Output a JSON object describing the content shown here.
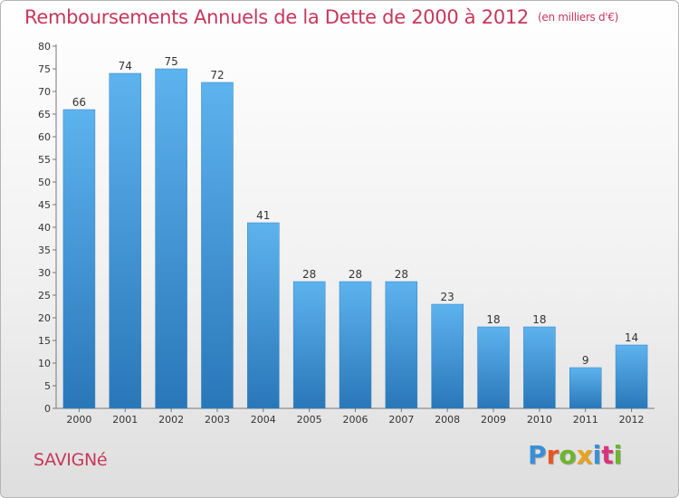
{
  "title": "Remboursements Annuels de la Dette de 2000 à 2012",
  "subtitle": "(en milliers d'€)",
  "commune": "SAVIGNé",
  "logo": {
    "text": "Proxiti",
    "letters": [
      "P",
      "r",
      "o",
      "x",
      "i",
      "t",
      "i"
    ],
    "colors": [
      "#3a8ed8",
      "#e8571f",
      "#6cb52d",
      "#e8a21e",
      "#3a8ed8",
      "#d8347d",
      "#6cb52d"
    ]
  },
  "colors": {
    "bar_top": "#5db3ee",
    "bar_bottom": "#2a77b8",
    "title": "#c8375b",
    "text": "#333333"
  },
  "chart_data": {
    "type": "bar",
    "categories": [
      "2000",
      "2001",
      "2002",
      "2003",
      "2004",
      "2005",
      "2006",
      "2007",
      "2008",
      "2009",
      "2010",
      "2011",
      "2012"
    ],
    "values": [
      66,
      74,
      75,
      72,
      41,
      28,
      28,
      28,
      23,
      18,
      18,
      9,
      14
    ],
    "ylim": [
      0,
      80
    ],
    "yticks": [
      0,
      5,
      10,
      15,
      20,
      25,
      30,
      35,
      40,
      45,
      50,
      55,
      60,
      65,
      70,
      75,
      80
    ],
    "title": "Remboursements Annuels de la Dette de 2000 à 2012",
    "xlabel": "",
    "ylabel": "",
    "grid": false,
    "data_labels": true
  }
}
